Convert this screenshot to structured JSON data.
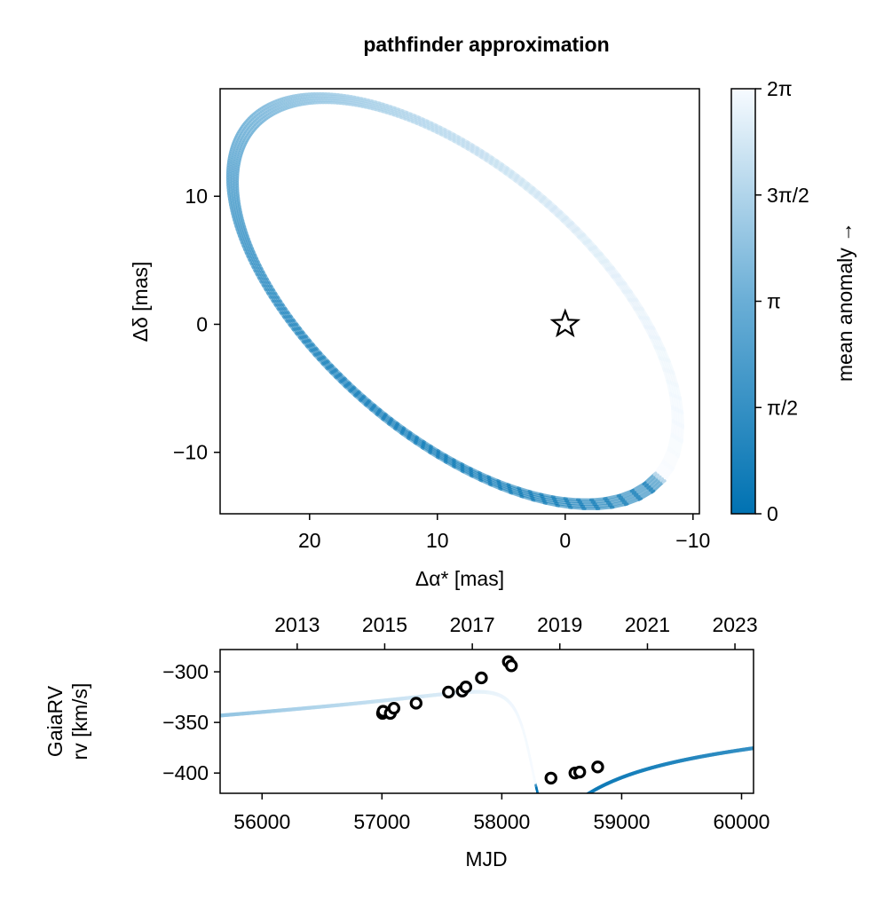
{
  "title": "pathfinder approximation",
  "colors": {
    "title": "#8b0000",
    "cmap_start": "#0072b2",
    "cmap_mid": "#6aaed6",
    "cmap_end": "#f7fbff",
    "marker": "#000000"
  },
  "chart_data": [
    {
      "name": "astrometric-orbit",
      "type": "line",
      "xlabel": "Δα* [mas]",
      "ylabel": "Δδ [mas]",
      "xlim": [
        27,
        -10.5
      ],
      "ylim": [
        -14.8,
        18.4
      ],
      "xticks": [
        20,
        10,
        0,
        -10
      ],
      "xtick_labels": [
        "20",
        "10",
        "0",
        "−10"
      ],
      "yticks": [
        10,
        0,
        -10
      ],
      "ytick_labels": [
        "10",
        "0",
        "−10"
      ],
      "orbit": {
        "center": [
          8.6,
          1.8
        ],
        "u": [
          -0.76,
          -0.65
        ],
        "v": [
          0.65,
          -0.76
        ],
        "semi_major": 21.1,
        "semi_minor": 10.5,
        "periastron_distance": 4.9,
        "eccentricity": 0.76
      },
      "star_marker": [
        0,
        0
      ],
      "n_samples": 5
    },
    {
      "name": "colorbar",
      "type": "colorbar",
      "label": "mean anomaly →",
      "range": [
        0,
        6.2832
      ],
      "ticks": [
        0,
        1.5708,
        3.1416,
        4.7124,
        6.2832
      ],
      "tick_labels": [
        "0",
        "π/2",
        "π",
        "3π/2",
        "2π"
      ]
    },
    {
      "name": "radial-velocity",
      "type": "scatter",
      "ylabel": "GaiaRV\nrv [km/s]",
      "ylabel_lines": [
        "GaiaRV",
        "rv [km/s]"
      ],
      "xlabel": "MJD",
      "xlim": [
        55650,
        60100
      ],
      "ylim": [
        -420,
        -278
      ],
      "xticks": [
        56000,
        57000,
        58000,
        59000,
        60000
      ],
      "xtick_labels": [
        "56000",
        "57000",
        "58000",
        "59000",
        "60000"
      ],
      "yticks": [
        -300,
        -350,
        -400
      ],
      "ytick_labels": [
        "−300",
        "−350",
        "−400"
      ],
      "top_axis_years": [
        "2013",
        "2015",
        "2017",
        "2019",
        "2021",
        "2023"
      ],
      "top_axis_mjd": [
        56293,
        57023,
        57754,
        58484,
        59215,
        59945
      ],
      "period_days": 7300,
      "periastron_mjd": 58280,
      "model": {
        "gamma": -360,
        "K": 62,
        "e": 0.76,
        "omega": 2.05
      },
      "points": [
        {
          "x": 57005,
          "y": -341
        },
        {
          "x": 57010,
          "y": -339
        },
        {
          "x": 57070,
          "y": -341
        },
        {
          "x": 57100,
          "y": -336
        },
        {
          "x": 57285,
          "y": -331
        },
        {
          "x": 57555,
          "y": -320
        },
        {
          "x": 57670,
          "y": -319
        },
        {
          "x": 57700,
          "y": -315
        },
        {
          "x": 57830,
          "y": -306
        },
        {
          "x": 58055,
          "y": -290
        },
        {
          "x": 58080,
          "y": -294
        },
        {
          "x": 58410,
          "y": -405
        },
        {
          "x": 58610,
          "y": -400
        },
        {
          "x": 58650,
          "y": -399
        },
        {
          "x": 58800,
          "y": -394
        }
      ]
    }
  ]
}
